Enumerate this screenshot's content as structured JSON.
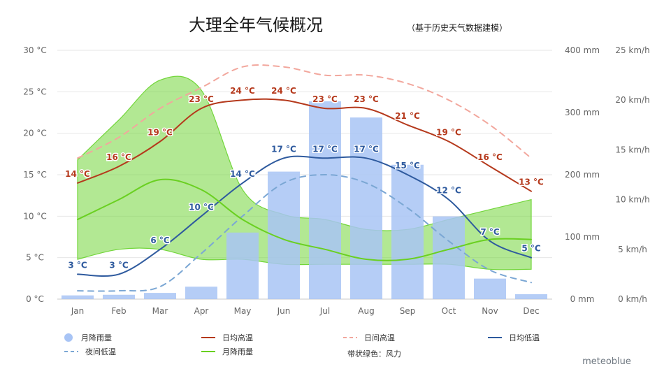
{
  "chart_data": {
    "type": "bar",
    "title": "大理全年气候概况",
    "subtitle": "（基于历史天气数据建模）",
    "categories": [
      "Jan",
      "Feb",
      "Mar",
      "Apr",
      "May",
      "Jun",
      "Jul",
      "Aug",
      "Sep",
      "Oct",
      "Nov",
      "Dec"
    ],
    "axes": {
      "temperature": {
        "unit": "°C",
        "range": [
          0,
          30
        ],
        "ticks": [
          "0 °C",
          "5 °C",
          "10 °C",
          "15 °C",
          "20 °C",
          "25 °C",
          "30 °C"
        ]
      },
      "precipitation": {
        "unit": "mm",
        "range": [
          0,
          400
        ],
        "ticks": [
          "0 mm",
          "100 mm",
          "200 mm",
          "300 mm",
          "400 mm"
        ]
      },
      "wind": {
        "unit": "km/h",
        "range": [
          0,
          25
        ],
        "ticks": [
          "0 km/h",
          "5 km/h",
          "10 km/h",
          "15 km/h",
          "20 km/h",
          "25 km/h"
        ]
      }
    },
    "grid": true,
    "series": [
      {
        "name": "月降雨量",
        "type": "bar",
        "axis": "precipitation",
        "color": "#a8c4f5",
        "values": [
          6,
          7,
          10,
          20,
          107,
          205,
          318,
          292,
          216,
          133,
          33,
          8
        ]
      },
      {
        "name": "日均高温",
        "type": "line",
        "axis": "temperature",
        "color": "#b5391c",
        "values": [
          14,
          16,
          19,
          23,
          24,
          24,
          23,
          23,
          21,
          19,
          16,
          13
        ],
        "labels": [
          "14 °C",
          "16 °C",
          "19 °C",
          "23 °C",
          "24 °C",
          "24 °C",
          "23 °C",
          "23 °C",
          "21 °C",
          "19 °C",
          "16 °C",
          "13 °C"
        ]
      },
      {
        "name": "日间高温",
        "type": "line",
        "dash": true,
        "axis": "temperature",
        "color": "#f2a79d",
        "values": [
          17,
          19.5,
          23,
          25.5,
          28,
          28,
          27,
          27,
          26,
          24,
          21,
          17
        ]
      },
      {
        "name": "日均低温",
        "type": "line",
        "axis": "temperature",
        "color": "#2e5a9e",
        "values": [
          3,
          3,
          6,
          10,
          14,
          17,
          17,
          17,
          15,
          12,
          7,
          5
        ],
        "labels": [
          "3 °C",
          "3 °C",
          "6 °C",
          "10 °C",
          "14 °C",
          "17 °C",
          "17 °C",
          "17 °C",
          "15 °C",
          "12 °C",
          "7 °C",
          "5 °C"
        ]
      },
      {
        "name": "夜间低温",
        "type": "line",
        "dash": true,
        "axis": "temperature",
        "color": "#7ba7d4",
        "values": [
          1,
          1,
          1.5,
          5.5,
          10,
          14,
          15,
          14,
          11,
          7,
          3.5,
          2
        ]
      },
      {
        "name": "月降雨量",
        "type": "line",
        "axis": "wind",
        "color": "#6ad021",
        "values": [
          8,
          10,
          12,
          11,
          8,
          6,
          5,
          4,
          4,
          5,
          6,
          6
        ]
      },
      {
        "name": "风力",
        "type": "band",
        "axis": "wind",
        "color": "#72d63a",
        "upper": [
          14,
          18,
          22,
          21,
          11,
          8.5,
          8,
          7,
          7,
          8,
          9,
          10
        ],
        "lower": [
          4,
          5,
          5,
          4,
          4,
          3.5,
          3.5,
          3.5,
          3.5,
          3.5,
          3,
          3
        ]
      }
    ],
    "legend": {
      "placement": "bottom",
      "items": [
        {
          "label": "月降雨量",
          "kind": "dot",
          "color": "#a8c4f5"
        },
        {
          "label": "日均高温",
          "kind": "line",
          "color": "#b5391c"
        },
        {
          "label": "日间高温",
          "kind": "dash",
          "color": "#f2a79d"
        },
        {
          "label": "日均低温",
          "kind": "line",
          "color": "#2e5a9e"
        },
        {
          "label": "夜间低温",
          "kind": "dash",
          "color": "#7ba7d4"
        },
        {
          "label": "月降雨量",
          "kind": "line",
          "color": "#6ad021"
        },
        {
          "label": "带状绿色：风力",
          "kind": "text",
          "color": "#333333"
        }
      ]
    },
    "brand": "meteoblue"
  }
}
